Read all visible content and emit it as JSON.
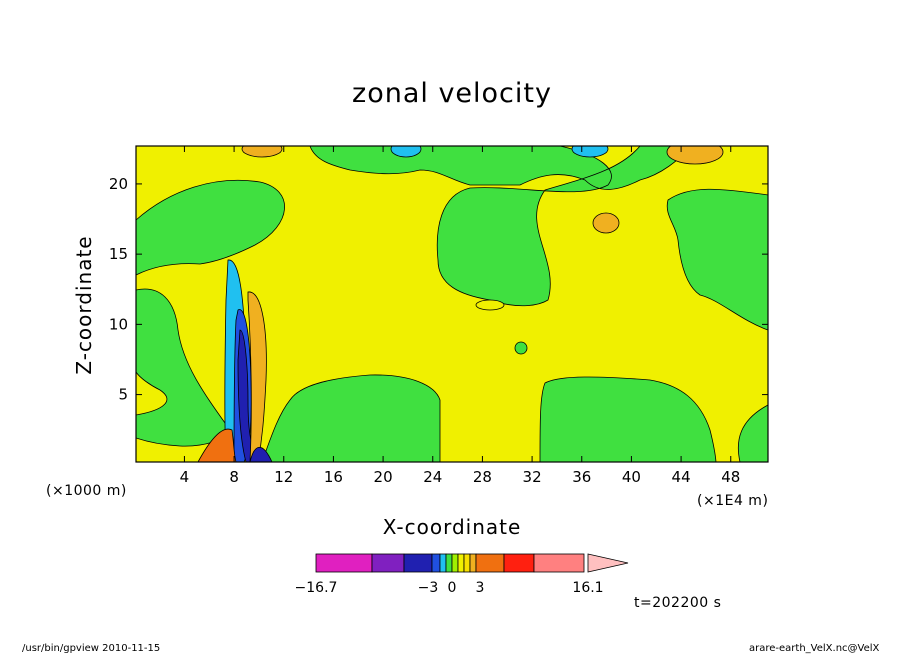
{
  "chart_data": {
    "type": "heatmap",
    "title": "zonal velocity",
    "xlabel": "X-coordinate",
    "ylabel": "Z-coordinate",
    "x_offset_label": "(×1000 m)",
    "x_unit_label": "(×1E4 m)",
    "x_ticks": [
      4,
      8,
      12,
      16,
      20,
      24,
      28,
      32,
      36,
      40,
      44,
      48
    ],
    "y_ticks": [
      5,
      10,
      15,
      20
    ],
    "xlim": [
      0.1,
      51
    ],
    "ylim": [
      0.2,
      22.7
    ],
    "colorbar": {
      "min": -16.7,
      "max": 16.1,
      "tick_labels": [
        "−16.7",
        "−3",
        "0",
        "3",
        "16.1"
      ],
      "colors": [
        "#e020c0",
        "#8020c0",
        "#2020b0",
        "#2050e0",
        "#20c0f0",
        "#40e040",
        "#a0f000",
        "#f0f000",
        "#f8e000",
        "#f0b020",
        "#f07010",
        "#ff2010",
        "#ff8080",
        "#ffc0c0"
      ]
    },
    "time_label": "t=202200 s"
  },
  "footer": {
    "left": "/usr/bin/gpview   2010-11-15",
    "right": "arare-earth_VelX.nc@VelX"
  }
}
